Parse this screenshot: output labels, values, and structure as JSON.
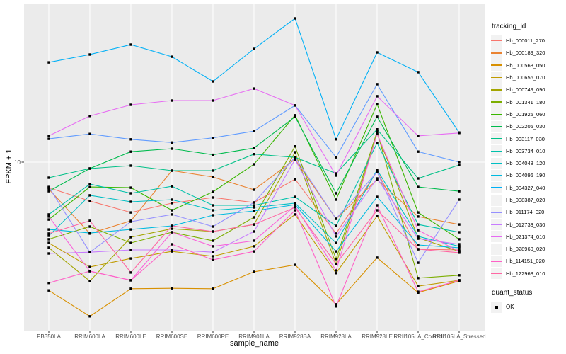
{
  "chart": {
    "panel_bg": "#EBEBEB",
    "grid_color": "#FFFFFF",
    "tick_label_color": "#4D4D4D",
    "point_color": "#000000"
  },
  "chart_data": {
    "type": "line",
    "title": "",
    "xlabel": "sample_name",
    "ylabel": "FPKM + 1",
    "yscale": "log10",
    "yticks": [
      10
    ],
    "ytick_labels": [
      "10"
    ],
    "ylim": [
      1.05,
      95
    ],
    "grid": true,
    "legend_position": "right",
    "legend_title": "tracking_id",
    "quant_status_title": "quant_status",
    "quant_status_values": [
      "OK"
    ],
    "point_marker": "square",
    "categories": [
      "PB350LA",
      "RRIM600LA",
      "RRIM600LE",
      "RRIM600SE",
      "RRIM600PE",
      "RRIM901LA",
      "RRIM928BA",
      "RRIM928LA",
      "RRIM928LE",
      "RRII105LA_Control",
      "RRII105LA_Stressed"
    ],
    "series": [
      {
        "name": "Hb_000011_270",
        "color": "#F8766D",
        "values": [
          6.97,
          5.77,
          4.91,
          5.6,
          6.06,
          5.65,
          7.86,
          3.64,
          8.78,
          2.92,
          2.89
        ]
      },
      {
        "name": "Hb_000189_320",
        "color": "#EA8331",
        "values": [
          6.83,
          3.64,
          4.36,
          8.87,
          8.1,
          6.77,
          10.4,
          4.49,
          7.79,
          4.63,
          4.14
        ]
      },
      {
        "name": "Hb_000568_050",
        "color": "#D89000",
        "values": [
          1.63,
          1.13,
          1.67,
          1.68,
          1.67,
          2.12,
          2.34,
          1.34,
          2.59,
          1.58,
          1.86
        ]
      },
      {
        "name": "Hb_000656_070",
        "color": "#C09B00",
        "values": [
          3.19,
          2.27,
          2.56,
          2.83,
          2.64,
          3.04,
          4.77,
          2.08,
          4.67,
          1.73,
          1.88
        ]
      },
      {
        "name": "Hb_000749_090",
        "color": "#A3A500",
        "values": [
          2.98,
          1.86,
          3.46,
          3.9,
          3.75,
          4.14,
          11.5,
          2.37,
          14.9,
          3.43,
          2.83
        ]
      },
      {
        "name": "Hb_001341_180",
        "color": "#7CAE00",
        "values": [
          3.36,
          4.02,
          3.19,
          3.71,
          3.29,
          4.58,
          12.5,
          2.54,
          15.4,
          1.94,
          2.02
        ]
      },
      {
        "name": "Hb_001925_060",
        "color": "#39B600",
        "values": [
          4.44,
          7.04,
          6.97,
          5.06,
          6.57,
          9.7,
          19.4,
          5.88,
          22.7,
          4.91,
          3.36
        ]
      },
      {
        "name": "Hb_002205_030",
        "color": "#00BB4E",
        "values": [
          6.63,
          9.14,
          11.6,
          12.1,
          11.1,
          12.2,
          19.0,
          6.44,
          19.0,
          7.04,
          6.63
        ]
      },
      {
        "name": "Hb_003117_030",
        "color": "#00C087",
        "values": [
          8.02,
          9.14,
          9.51,
          8.87,
          8.87,
          11.2,
          10.7,
          8.52,
          15.9,
          7.94,
          9.61
        ]
      },
      {
        "name": "Hb_003734_010",
        "color": "#00C1AB",
        "values": [
          4.77,
          7.33,
          6.44,
          7.11,
          5.43,
          5.43,
          6.12,
          4.06,
          13.1,
          4.14,
          3.71
        ]
      },
      {
        "name": "Hb_004048_120",
        "color": "#00BFC4",
        "values": [
          3.53,
          6.25,
          5.71,
          5.88,
          5.06,
          5.27,
          5.6,
          3.19,
          8.96,
          3.5,
          3.04
        ]
      },
      {
        "name": "Hb_004096_190",
        "color": "#00BAE0",
        "values": [
          3.86,
          3.67,
          3.86,
          4.06,
          4.72,
          5.01,
          5.48,
          2.83,
          6.12,
          3.1,
          2.98
        ]
      },
      {
        "name": "Hb_004327_040",
        "color": "#00B0F6",
        "values": [
          41.0,
          45.8,
          52.7,
          44.4,
          31.3,
          49.6,
          76.3,
          13.8,
          47.2,
          35.7,
          15.2
        ]
      },
      {
        "name": "Hb_008387_020",
        "color": "#619CFF",
        "values": [
          13.9,
          14.9,
          13.8,
          13.2,
          14.1,
          15.5,
          22.3,
          10.7,
          30.1,
          11.6,
          10.0
        ]
      },
      {
        "name": "Hb_011174_020",
        "color": "#9590FF",
        "values": [
          7.04,
          2.8,
          4.31,
          4.77,
          4.02,
          5.65,
          10.7,
          4.49,
          8.69,
          2.41,
          5.88
        ]
      },
      {
        "name": "Hb_012733_030",
        "color": "#C77CFF",
        "values": [
          2.75,
          2.8,
          2.89,
          2.89,
          2.8,
          3.75,
          10.4,
          3.5,
          7.94,
          3.39,
          3.13
        ]
      },
      {
        "name": "Hb_021374_010",
        "color": "#E76BF3",
        "values": [
          14.5,
          19.2,
          22.5,
          23.9,
          23.9,
          28.3,
          22.3,
          8.27,
          25.4,
          14.5,
          15.1
        ]
      },
      {
        "name": "Hb_028960_020",
        "color": "#FA62DB",
        "values": [
          4.63,
          2.14,
          1.88,
          3.71,
          3.04,
          3.29,
          5.38,
          2.16,
          14.9,
          3.82,
          2.83
        ]
      },
      {
        "name": "Hb_114151_020",
        "color": "#FF61C7",
        "values": [
          1.81,
          2.14,
          1.88,
          3.13,
          2.51,
          2.83,
          5.06,
          1.3,
          5.43,
          1.6,
          1.88
        ]
      },
      {
        "name": "Hb_122968_010",
        "color": "#FF67A4",
        "values": [
          3.64,
          4.36,
          2.1,
          4.06,
          3.75,
          4.14,
          5.27,
          2.37,
          5.06,
          2.92,
          2.78
        ]
      }
    ]
  }
}
